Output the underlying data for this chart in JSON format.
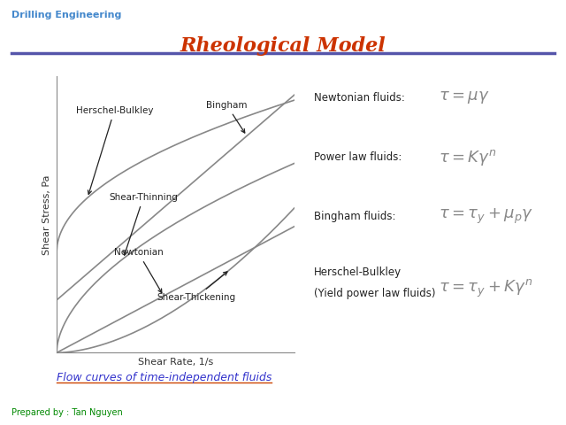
{
  "title": "Rheological Model",
  "title_color": "#CC3300",
  "title_fontsize": 16,
  "header_text": "Drilling Engineering",
  "header_color": "#4488CC",
  "footer_text": "Prepared by : Tan Nguyen",
  "footer_color": "#008800",
  "subtitle": "Flow curves of time-independent fluids",
  "subtitle_color": "#3333CC",
  "subtitle_underline_color": "#CC4400",
  "xlabel": "Shear Rate, 1/s",
  "ylabel": "Shear Stress, Pa",
  "bg_color": "#FFFFFF",
  "line_color": "#888888",
  "line_width": 1.2,
  "divider_color": "#5555AA",
  "label_fontsize": 7.5,
  "eq_label_fontsize": 8.5,
  "eq_fontsize": 13
}
